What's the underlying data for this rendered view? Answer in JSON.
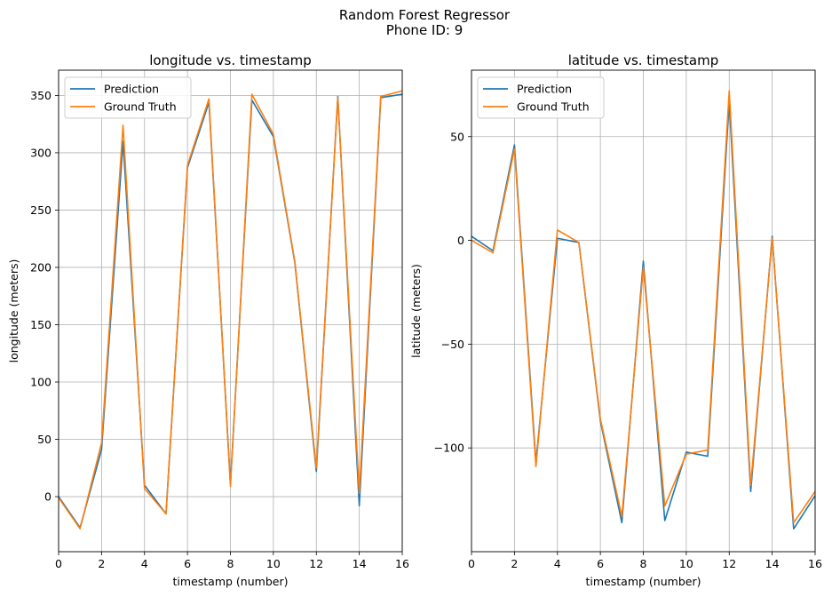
{
  "figure": {
    "suptitle_line1": "Random Forest Regressor",
    "suptitle_line2": "Phone ID: 9"
  },
  "colors": {
    "prediction": "#1f77b4",
    "ground_truth": "#ff7f0e",
    "grid": "#b0b0b0"
  },
  "chart_data": [
    {
      "type": "line",
      "title": "longitude vs. timestamp",
      "xlabel": "timestamp (number)",
      "ylabel": "longitude (meters)",
      "xlim": [
        0,
        16
      ],
      "ylim": [
        -48,
        372
      ],
      "xticks": [
        0,
        2,
        4,
        6,
        8,
        10,
        12,
        14,
        16
      ],
      "yticks": [
        0,
        50,
        100,
        150,
        200,
        250,
        300,
        350
      ],
      "grid": true,
      "legend": "top-left",
      "x": [
        0,
        1,
        2,
        3,
        4,
        5,
        6,
        7,
        8,
        9,
        10,
        11,
        12,
        13,
        14,
        15,
        16
      ],
      "series": [
        {
          "name": "Prediction",
          "color": "#1f77b4",
          "values": [
            0,
            -27,
            41,
            310,
            10,
            -15,
            287,
            344,
            11,
            346,
            314,
            204,
            22,
            349,
            -8,
            348,
            351
          ]
        },
        {
          "name": "Ground Truth",
          "color": "#ff7f0e",
          "values": [
            -1,
            -28,
            47,
            324,
            7,
            -15,
            289,
            347,
            9,
            351,
            316,
            205,
            25,
            348,
            3,
            349,
            354
          ]
        }
      ]
    },
    {
      "type": "line",
      "title": "latitude vs. timestamp",
      "xlabel": "timestamp (number)",
      "ylabel": "latitude (meters)",
      "xlim": [
        0,
        16
      ],
      "ylim": [
        -150,
        82
      ],
      "xticks": [
        0,
        2,
        4,
        6,
        8,
        10,
        12,
        14,
        16
      ],
      "yticks": [
        -100,
        -50,
        0,
        50
      ],
      "grid": true,
      "legend": "top-left",
      "x": [
        0,
        1,
        2,
        3,
        4,
        5,
        6,
        7,
        8,
        9,
        10,
        11,
        12,
        13,
        14,
        15,
        16
      ],
      "series": [
        {
          "name": "Prediction",
          "color": "#1f77b4",
          "values": [
            2,
            -5,
            46,
            -107,
            1,
            -1,
            -87,
            -136,
            -10,
            -135,
            -102,
            -104,
            67,
            -121,
            2,
            -139,
            -123
          ]
        },
        {
          "name": "Ground Truth",
          "color": "#ff7f0e",
          "values": [
            0,
            -6,
            44,
            -109,
            5,
            -1,
            -86,
            -133,
            -13,
            -128,
            -103,
            -101,
            72,
            -118,
            1,
            -136,
            -121
          ]
        }
      ]
    }
  ]
}
